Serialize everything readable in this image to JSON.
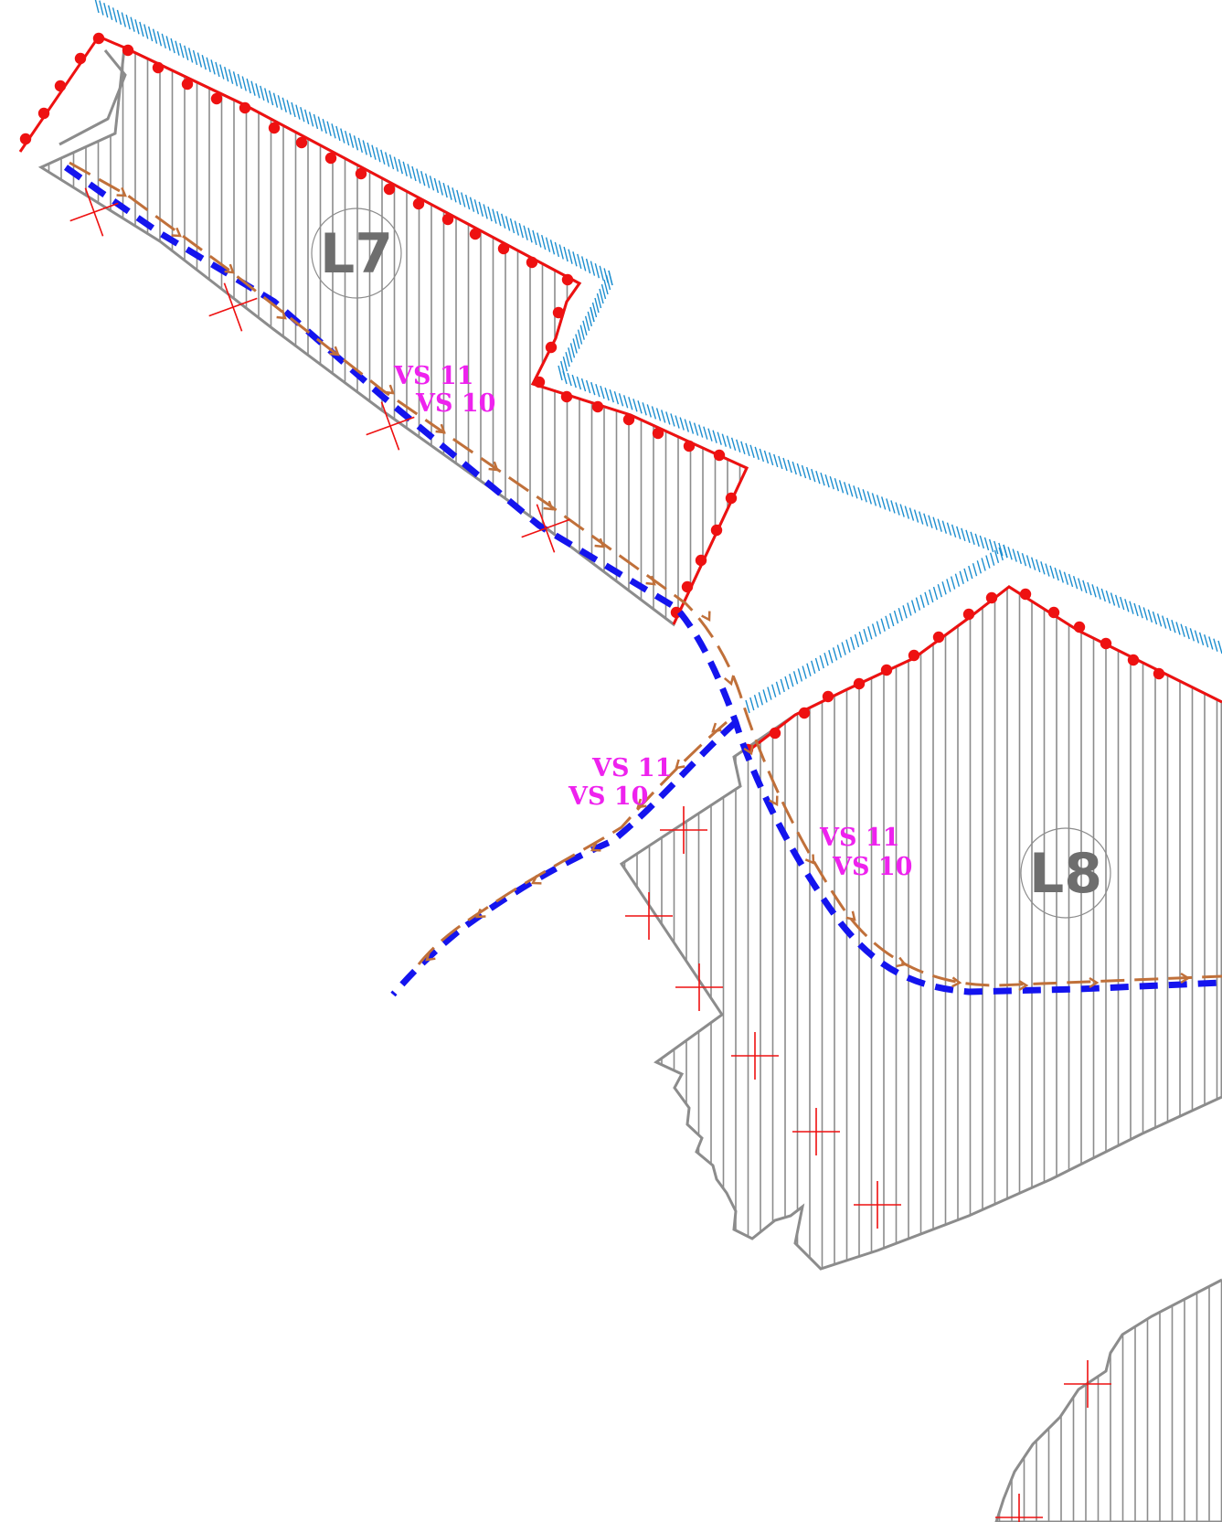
{
  "colors": {
    "background": "#ffffff",
    "plot_outline": "#8c8c8c",
    "hatch": "#8c8c8c",
    "shoreline": "#1e8fd0",
    "red_boundary": "#ee1111",
    "blue_line": "#1414ee",
    "brown_line": "#c0703a",
    "vs_label": "#ee22ee",
    "plot_label": "#6e6e6e"
  },
  "parcels": [
    {
      "id": "L7",
      "label": "L7"
    },
    {
      "id": "L8",
      "label": "L8"
    }
  ],
  "route_labels": [
    {
      "top": "VS 11",
      "bottom": "VS 10"
    },
    {
      "top": "VS 11",
      "bottom": "VS 10"
    },
    {
      "top": "VS 11",
      "bottom": "VS 10"
    }
  ]
}
